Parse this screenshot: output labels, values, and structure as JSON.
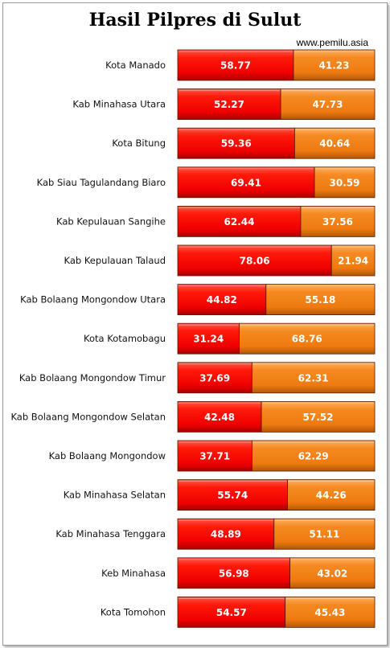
{
  "chart_data": {
    "type": "bar",
    "stacked": true,
    "orientation": "horizontal",
    "title": "Hasil Pilpres di Sulut",
    "source": "www.pemilu.asia",
    "categories": [
      "Kota Manado",
      "Kab Minahasa Utara",
      "Kota Bitung",
      "Kab Siau Tagulandang  Biaro",
      "Kab Kepulauan  Sangihe",
      "Kab Kepulauan  Talaud",
      "Kab Bolaang  Mongondow Utara",
      "Kota Kotamobagu",
      "Kab Bolaang  Mongondow Timur",
      "Kab Bolaang  Mongondow Selatan",
      "Kab Bolaang  Mongondow",
      "Kab Minahasa  Selatan",
      "Kab Minahasa  Tenggara",
      "Keb Minahasa",
      "Kota Tomohon"
    ],
    "series": [
      {
        "values": [
          58.77,
          52.27,
          59.36,
          69.41,
          62.44,
          78.06,
          44.82,
          31.24,
          37.69,
          42.48,
          37.71,
          55.74,
          48.89,
          56.98,
          54.57
        ],
        "labels": [
          "58.77",
          "52.27",
          "59.36",
          "69.41",
          "62.44",
          "78.06",
          "44.82",
          "31.24",
          "37.69",
          "42.48",
          "37.71",
          "55.74",
          "48.89",
          "56.98",
          "54.57"
        ],
        "color": "#ff0000"
      },
      {
        "values": [
          41.23,
          47.73,
          40.64,
          30.59,
          37.56,
          21.94,
          55.18,
          68.76,
          62.31,
          57.52,
          62.29,
          44.26,
          51.11,
          43.02,
          45.43
        ],
        "labels": [
          "41.23",
          "47.73",
          "40.64",
          "30.59",
          "37.56",
          "21.94",
          "55.18",
          "68.76",
          "62.31",
          "57.52",
          "62.29",
          "44.26",
          "51.11",
          "43.02",
          "45.43"
        ],
        "color": "#f07c12"
      }
    ],
    "xlim": [
      0,
      100
    ],
    "grid": false,
    "legend": "none"
  }
}
